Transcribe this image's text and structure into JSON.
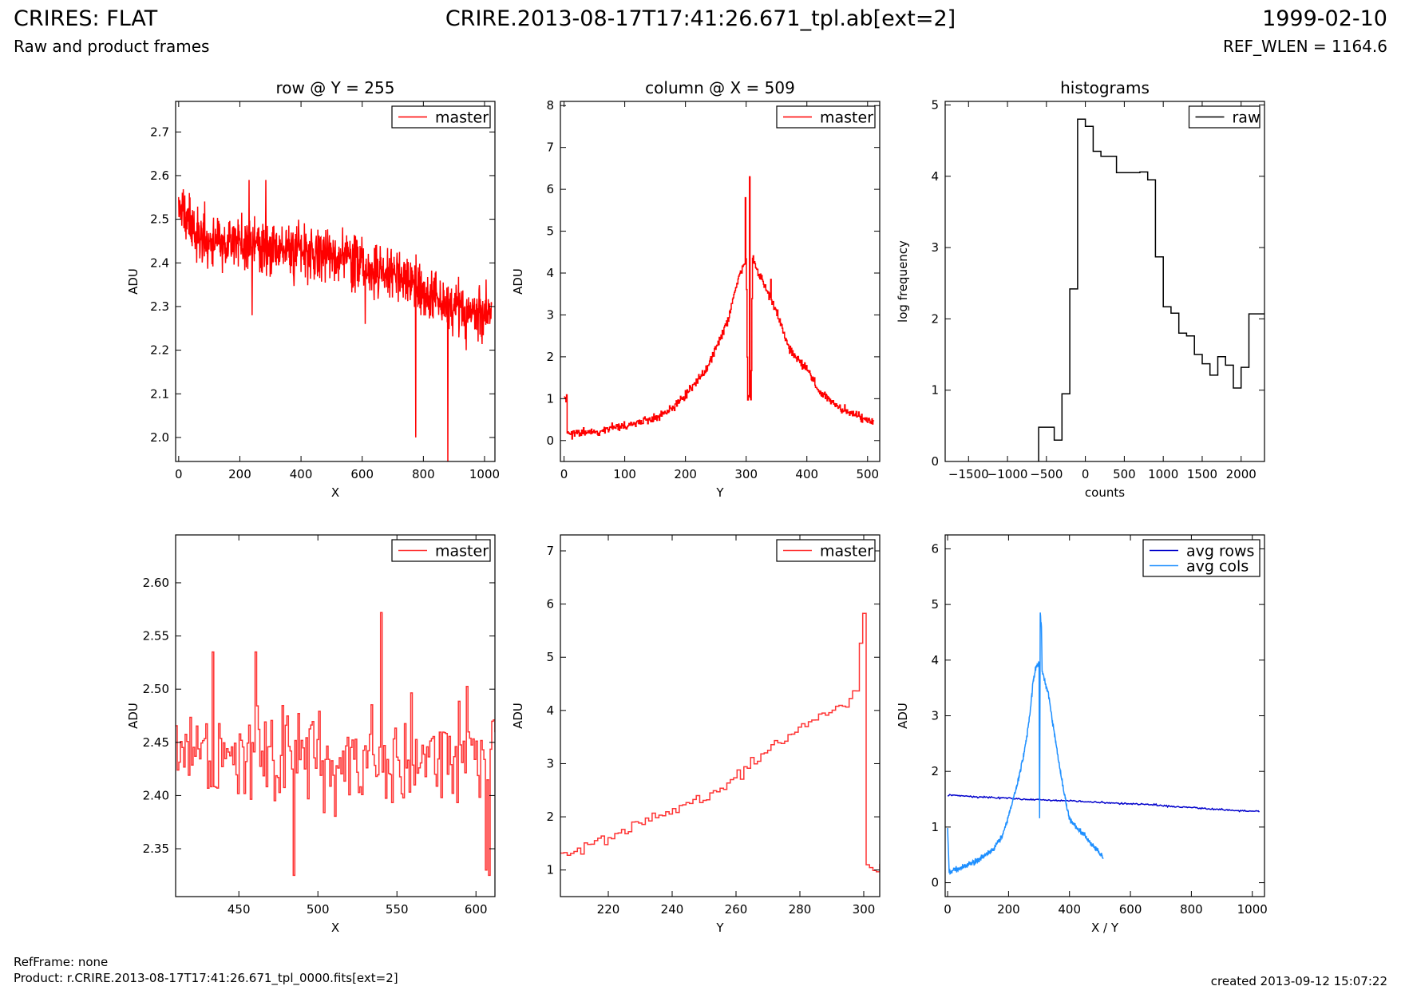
{
  "header": {
    "title": "CRIRES: FLAT",
    "subtitle": "Raw and product frames",
    "filename": "CRIRE.2013-08-17T17:41:26.671_tpl.ab[ext=2]",
    "date": "1999-02-10",
    "ref_wlen": "REF_WLEN = 1164.6"
  },
  "footer": {
    "refframe": "RefFrame: none",
    "product": "Product: r.CRIRE.2013-08-17T17:41:26.671_tpl_0000.fits[ext=2]",
    "created": "created 2013-09-12 15:07:22"
  },
  "colors": {
    "master": "#ff0000",
    "raw": "#000000",
    "avg_rows": "#0000cc",
    "avg_cols": "#1e8fff"
  },
  "chart_data": [
    {
      "id": "p1",
      "type": "line",
      "title": "row @ Y = 255",
      "xlabel": "X",
      "ylabel": "ADU",
      "xlim": [
        -10,
        1034
      ],
      "ylim": [
        1.945,
        2.77
      ],
      "xticks": [
        0,
        200,
        400,
        600,
        800,
        1000
      ],
      "yticks": [
        2.0,
        2.1,
        2.2,
        2.3,
        2.4,
        2.5,
        2.6,
        2.7
      ],
      "legend": "top-right",
      "series": [
        {
          "name": "master",
          "color": "#ff0000",
          "step": false,
          "points": [
            [
              0,
              2.53
            ],
            [
              50,
              2.47
            ],
            [
              100,
              2.45
            ],
            [
              150,
              2.44
            ],
            [
              200,
              2.45
            ],
            [
              250,
              2.44
            ],
            [
              300,
              2.43
            ],
            [
              350,
              2.43
            ],
            [
              400,
              2.43
            ],
            [
              450,
              2.42
            ],
            [
              500,
              2.41
            ],
            [
              550,
              2.41
            ],
            [
              600,
              2.4
            ],
            [
              650,
              2.38
            ],
            [
              700,
              2.37
            ],
            [
              750,
              2.36
            ],
            [
              800,
              2.33
            ],
            [
              850,
              2.31
            ],
            [
              900,
              2.3
            ],
            [
              950,
              2.29
            ],
            [
              1000,
              2.28
            ],
            [
              1023,
              2.29
            ]
          ],
          "noise": 0.045,
          "seed": 11,
          "n": 1024,
          "spikes": [
            [
              35,
              2.56
            ],
            [
              230,
              2.59
            ],
            [
              285,
              2.59
            ],
            [
              240,
              2.28
            ],
            [
              610,
              2.26
            ],
            [
              775,
              2.0
            ],
            [
              880,
              1.945
            ],
            [
              940,
              2.2
            ]
          ]
        }
      ]
    },
    {
      "id": "p2",
      "type": "line",
      "title": "column @ X = 509",
      "xlabel": "Y",
      "ylabel": "ADU",
      "xlim": [
        -6,
        520
      ],
      "ylim": [
        -0.5,
        8.1
      ],
      "xticks": [
        0,
        100,
        200,
        300,
        400,
        500
      ],
      "yticks": [
        0,
        1,
        2,
        3,
        4,
        5,
        6,
        7,
        8
      ],
      "legend": "top-right",
      "series": [
        {
          "name": "master",
          "color": "#ff0000",
          "step": true,
          "points": [
            [
              0,
              1.0
            ],
            [
              4,
              1.0
            ],
            [
              5,
              0.15
            ],
            [
              50,
              0.22
            ],
            [
              100,
              0.35
            ],
            [
              150,
              0.55
            ],
            [
              180,
              0.8
            ],
            [
              200,
              1.1
            ],
            [
              230,
              1.6
            ],
            [
              250,
              2.2
            ],
            [
              270,
              2.9
            ],
            [
              280,
              3.5
            ],
            [
              290,
              4.0
            ],
            [
              300,
              4.3
            ],
            [
              302,
              1.0
            ],
            [
              308,
              1.0
            ],
            [
              310,
              4.4
            ],
            [
              320,
              4.0
            ],
            [
              330,
              3.7
            ],
            [
              350,
              3.1
            ],
            [
              370,
              2.2
            ],
            [
              400,
              1.7
            ],
            [
              420,
              1.2
            ],
            [
              450,
              0.8
            ],
            [
              480,
              0.6
            ],
            [
              510,
              0.45
            ]
          ],
          "noise": 0.08,
          "seed": 23,
          "n": 512,
          "spikes": [
            [
              298,
              5.8
            ],
            [
              305,
              6.3
            ],
            [
              340,
              3.85
            ]
          ]
        }
      ]
    },
    {
      "id": "p3",
      "type": "line",
      "title": "histograms",
      "xlabel": "counts",
      "ylabel": "log frequency",
      "xlim": [
        -1800,
        2300
      ],
      "ylim": [
        0,
        5.05
      ],
      "xticks": [
        -1500,
        -1000,
        -500,
        0,
        500,
        1000,
        1500,
        2000
      ],
      "yticks": [
        0,
        1,
        2,
        3,
        4,
        5
      ],
      "legend": "top-right",
      "series": [
        {
          "name": "raw",
          "color": "#000000",
          "step": true,
          "points": [
            [
              -600,
              0
            ],
            [
              -600,
              0.48
            ],
            [
              -400,
              0.48
            ],
            [
              -400,
              0.3
            ],
            [
              -300,
              0.3
            ],
            [
              -300,
              0.95
            ],
            [
              -200,
              0.95
            ],
            [
              -200,
              2.42
            ],
            [
              -100,
              2.42
            ],
            [
              -100,
              4.8
            ],
            [
              0,
              4.8
            ],
            [
              0,
              4.7
            ],
            [
              100,
              4.7
            ],
            [
              100,
              4.35
            ],
            [
              200,
              4.35
            ],
            [
              200,
              4.28
            ],
            [
              400,
              4.28
            ],
            [
              400,
              4.05
            ],
            [
              700,
              4.05
            ],
            [
              700,
              4.06
            ],
            [
              800,
              4.06
            ],
            [
              800,
              3.95
            ],
            [
              900,
              3.95
            ],
            [
              900,
              2.87
            ],
            [
              1000,
              2.87
            ],
            [
              1000,
              2.17
            ],
            [
              1100,
              2.17
            ],
            [
              1100,
              2.08
            ],
            [
              1200,
              2.08
            ],
            [
              1200,
              1.8
            ],
            [
              1300,
              1.8
            ],
            [
              1300,
              1.76
            ],
            [
              1400,
              1.76
            ],
            [
              1400,
              1.5
            ],
            [
              1500,
              1.5
            ],
            [
              1500,
              1.37
            ],
            [
              1600,
              1.37
            ],
            [
              1600,
              1.21
            ],
            [
              1700,
              1.21
            ],
            [
              1700,
              1.47
            ],
            [
              1800,
              1.47
            ],
            [
              1800,
              1.35
            ],
            [
              1900,
              1.35
            ],
            [
              1900,
              1.03
            ],
            [
              2000,
              1.03
            ],
            [
              2000,
              1.32
            ],
            [
              2100,
              1.32
            ],
            [
              2100,
              2.07
            ],
            [
              2300,
              2.07
            ]
          ]
        }
      ]
    },
    {
      "id": "p4",
      "type": "line",
      "title": "",
      "xlabel": "X",
      "ylabel": "ADU",
      "xlim": [
        410,
        612
      ],
      "ylim": [
        2.305,
        2.645
      ],
      "xticks": [
        450,
        500,
        550,
        600
      ],
      "yticks": [
        2.35,
        2.4,
        2.45,
        2.5,
        2.55,
        2.6
      ],
      "legend": "top-right",
      "series": [
        {
          "name": "master",
          "color": "#ff3333",
          "step": true,
          "points": [
            [
              410,
              2.44
            ],
            [
              612,
              2.44
            ]
          ],
          "noise": 0.038,
          "seed": 47,
          "n": 202,
          "spikes": [
            [
              433,
              2.535
            ],
            [
              460,
              2.535
            ],
            [
              484,
              2.325
            ],
            [
              540,
              2.572
            ],
            [
              606,
              2.33
            ],
            [
              608,
              2.325
            ]
          ]
        }
      ]
    },
    {
      "id": "p5",
      "type": "line",
      "title": "",
      "xlabel": "Y",
      "ylabel": "ADU",
      "xlim": [
        205,
        305
      ],
      "ylim": [
        0.5,
        7.3
      ],
      "xticks": [
        220,
        240,
        260,
        280,
        300
      ],
      "yticks": [
        1,
        2,
        3,
        4,
        5,
        6,
        7
      ],
      "legend": "top-right",
      "series": [
        {
          "name": "master",
          "color": "#ff3333",
          "step": true,
          "points": [
            [
              205,
              1.28
            ],
            [
              215,
              1.45
            ],
            [
              225,
              1.75
            ],
            [
              235,
              2.05
            ],
            [
              245,
              2.25
            ],
            [
              255,
              2.5
            ],
            [
              265,
              3.0
            ],
            [
              275,
              3.45
            ],
            [
              285,
              3.85
            ],
            [
              295,
              4.15
            ],
            [
              298,
              4.45
            ],
            [
              299,
              5.82
            ],
            [
              300,
              5.82
            ],
            [
              300,
              1.0
            ],
            [
              305,
              1.0
            ]
          ],
          "noise": 0.09,
          "seed": 5,
          "n": 95,
          "spikes": []
        }
      ]
    },
    {
      "id": "p6",
      "type": "line",
      "title": "",
      "xlabel": "X / Y",
      "ylabel": "ADU",
      "xlim": [
        -8,
        1040
      ],
      "ylim": [
        -0.25,
        6.25
      ],
      "xticks": [
        0,
        200,
        400,
        600,
        800,
        1000
      ],
      "yticks": [
        0,
        1,
        2,
        3,
        4,
        5,
        6
      ],
      "legend": "top-right",
      "series": [
        {
          "name": "avg rows",
          "color": "#0000cc",
          "step": false,
          "points": [
            [
              0,
              1.58
            ],
            [
              100,
              1.54
            ],
            [
              200,
              1.52
            ],
            [
              300,
              1.49
            ],
            [
              400,
              1.47
            ],
            [
              500,
              1.44
            ],
            [
              600,
              1.42
            ],
            [
              700,
              1.39
            ],
            [
              800,
              1.35
            ],
            [
              900,
              1.31
            ],
            [
              1000,
              1.28
            ],
            [
              1023,
              1.28
            ]
          ],
          "noise": 0.012,
          "seed": 71,
          "n": 300,
          "spikes": []
        },
        {
          "name": "avg cols",
          "color": "#1e8fff",
          "step": false,
          "points": [
            [
              0,
              1.0
            ],
            [
              5,
              0.2
            ],
            [
              50,
              0.28
            ],
            [
              100,
              0.4
            ],
            [
              150,
              0.6
            ],
            [
              180,
              0.85
            ],
            [
              200,
              1.2
            ],
            [
              230,
              1.8
            ],
            [
              250,
              2.3
            ],
            [
              270,
              3.0
            ],
            [
              280,
              3.6
            ],
            [
              290,
              3.9
            ],
            [
              300,
              3.95
            ],
            [
              302,
              1.15
            ],
            [
              304,
              4.85
            ],
            [
              308,
              4.6
            ],
            [
              310,
              3.8
            ],
            [
              320,
              3.6
            ],
            [
              330,
              3.4
            ],
            [
              350,
              2.7
            ],
            [
              370,
              2.0
            ],
            [
              390,
              1.4
            ],
            [
              400,
              1.15
            ],
            [
              420,
              1.0
            ],
            [
              450,
              0.85
            ],
            [
              480,
              0.65
            ],
            [
              511,
              0.45
            ]
          ],
          "noise": 0.04,
          "seed": 83,
          "n": 512,
          "spikes": []
        }
      ]
    }
  ]
}
